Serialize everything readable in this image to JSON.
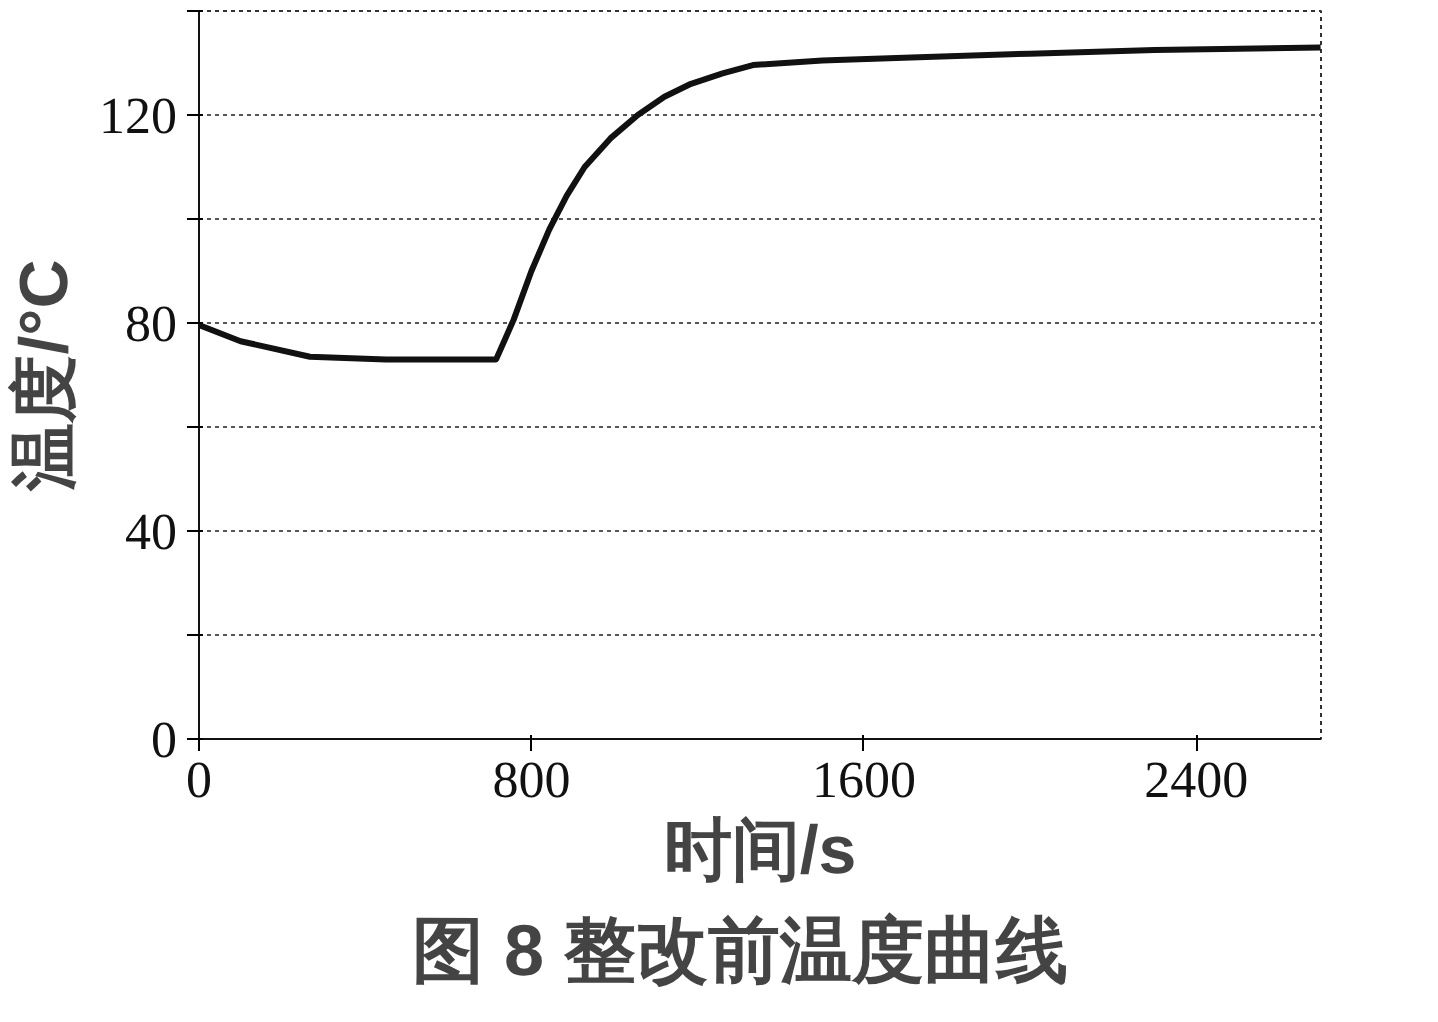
{
  "chart_data": {
    "type": "line",
    "title": "图 8   整改前温度曲线",
    "xlabel": "时间/s",
    "ylabel": "温度/°C",
    "x": [
      0,
      100,
      267,
      450,
      600,
      715,
      757,
      800,
      843,
      885,
      928,
      990,
      1056,
      1120,
      1184,
      1260,
      1333,
      1500,
      1696,
      2000,
      2300,
      2699
    ],
    "series": [
      {
        "color": "#111111",
        "values": [
          79.6,
          76.5,
          73.5,
          73,
          73,
          73,
          80.6,
          90,
          98,
          104.5,
          110,
          115.5,
          120,
          123.5,
          126,
          128,
          129.6,
          130.5,
          131,
          131.8,
          132.5,
          133
        ]
      }
    ],
    "xlim": [
      0,
      2700
    ],
    "xticks": [
      0,
      800,
      1600,
      2400
    ],
    "ylim": [
      0,
      140
    ],
    "yticks": [
      0,
      {
        "value": 20,
        "label": null
      },
      40,
      {
        "value": 60,
        "label": null
      },
      80,
      {
        "value": 100,
        "label": null
      },
      120,
      {
        "value": 140,
        "label": null
      }
    ],
    "grid": "y",
    "line_style": "solid",
    "marker": "none"
  }
}
